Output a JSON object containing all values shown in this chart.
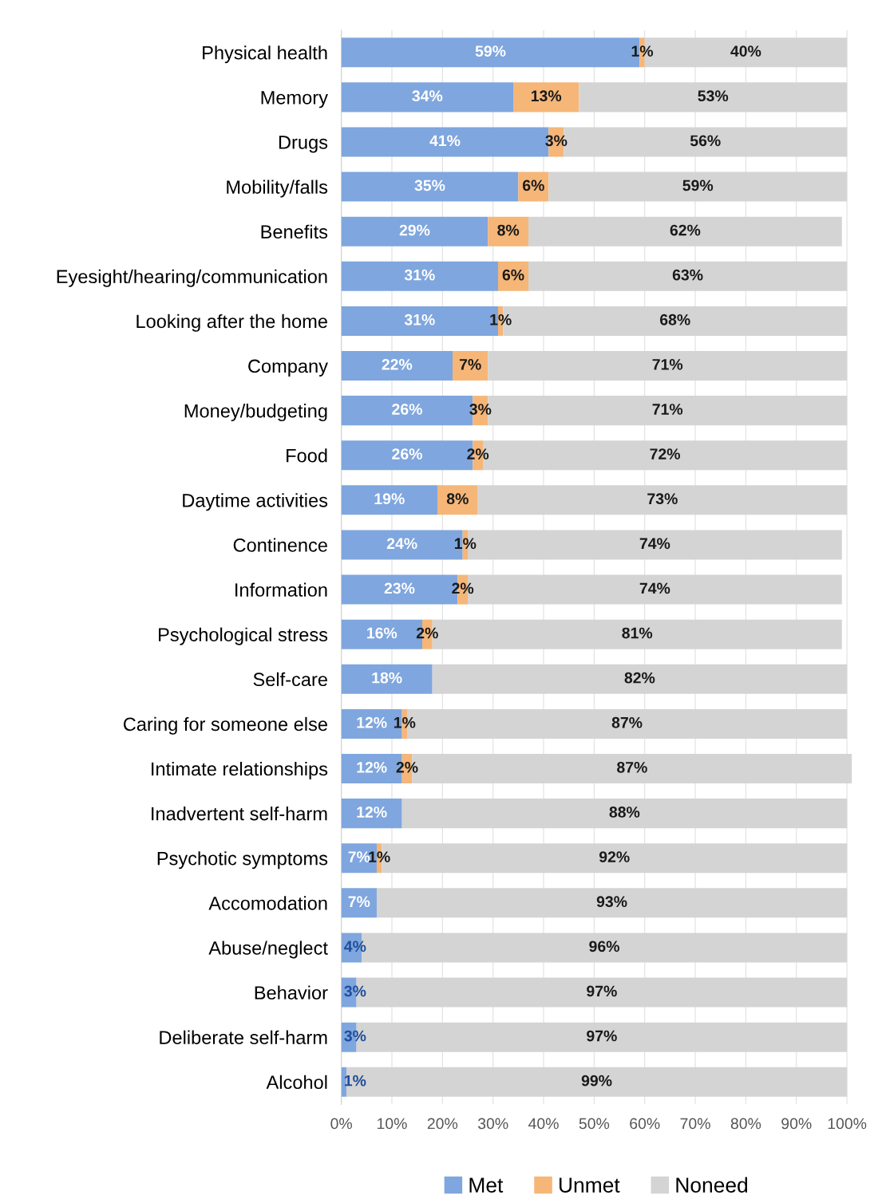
{
  "chart_data": {
    "type": "bar",
    "orientation": "horizontal",
    "stacked": true,
    "categories": [
      "Physical health",
      "Memory",
      "Drugs",
      "Mobility/falls",
      "Benefits",
      "Eyesight/hearing/communication",
      "Looking after the home",
      "Company",
      "Money/budgeting",
      "Food",
      "Daytime activities",
      "Continence",
      "Information",
      "Psychological stress",
      "Self-care",
      "Caring for someone else",
      "Intimate relationships",
      "Inadvertent self-harm",
      "Psychotic symptoms",
      "Accomodation",
      "Abuse/neglect",
      "Behavior",
      "Deliberate self-harm",
      "Alcohol"
    ],
    "series": [
      {
        "name": "Met",
        "color": "#7fa6de",
        "values": [
          59,
          34,
          41,
          35,
          29,
          31,
          31,
          22,
          26,
          26,
          19,
          24,
          23,
          16,
          18,
          12,
          12,
          12,
          7,
          7,
          4,
          3,
          3,
          1
        ],
        "value_labels": [
          "59%",
          "34%",
          "41%",
          "35%",
          "29%",
          "31%",
          "31%",
          "22%",
          "26%",
          "26%",
          "19%",
          "24%",
          "23%",
          "16%",
          "18%",
          "12%",
          "12%",
          "12%",
          "7%",
          "7%",
          "4%",
          "3%",
          "3%",
          "1%"
        ]
      },
      {
        "name": "Unmet",
        "color": "#f5b678",
        "values": [
          1,
          13,
          3,
          6,
          8,
          6,
          1,
          7,
          3,
          2,
          8,
          1,
          2,
          2,
          null,
          1,
          2,
          null,
          1,
          null,
          null,
          null,
          null,
          null
        ],
        "value_labels": [
          "1%",
          "13%",
          "3%",
          "6%",
          "8%",
          "6%",
          "1%",
          "7%",
          "3%",
          "2%",
          "8%",
          "1%",
          "2%",
          "2%",
          null,
          "1%",
          "2%",
          null,
          "1%",
          null,
          null,
          null,
          null,
          null
        ]
      },
      {
        "name": "Noneed",
        "color": "#d4d4d4",
        "values": [
          40,
          53,
          56,
          59,
          62,
          63,
          68,
          71,
          71,
          72,
          73,
          74,
          74,
          81,
          82,
          87,
          87,
          88,
          92,
          93,
          96,
          97,
          97,
          99
        ],
        "value_labels": [
          "40%",
          "53%",
          "56%",
          "59%",
          "62%",
          "63%",
          "68%",
          "71%",
          "71%",
          "72%",
          "73%",
          "74%",
          "74%",
          "81%",
          "82%",
          "87%",
          "87%",
          "88%",
          "92%",
          "93%",
          "96%",
          "97%",
          "97%",
          "99%"
        ]
      }
    ],
    "xlim": [
      0,
      101
    ],
    "xticks": [
      {
        "value": 0,
        "label": "0%"
      },
      {
        "value": 10,
        "label": "10%"
      },
      {
        "value": 20,
        "label": "20%"
      },
      {
        "value": 30,
        "label": "30%"
      },
      {
        "value": 40,
        "label": "40%"
      },
      {
        "value": 50,
        "label": "50%"
      },
      {
        "value": 60,
        "label": "60%"
      },
      {
        "value": 70,
        "label": "70%"
      },
      {
        "value": 80,
        "label": "80%"
      },
      {
        "value": 90,
        "label": "90%"
      },
      {
        "value": 100,
        "label": "100%"
      }
    ],
    "grid": "x",
    "legend": "bottom"
  }
}
